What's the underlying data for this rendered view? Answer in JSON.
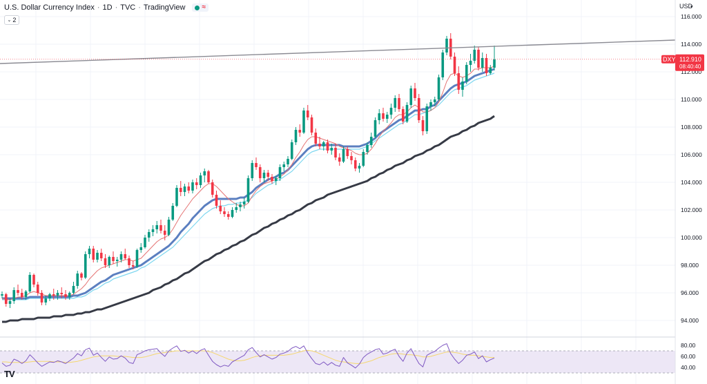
{
  "legend": {
    "title": "U.S. Dollar Currency Index",
    "interval": "1D",
    "source": "TVC",
    "platform": "TradingView",
    "status_icon": "market-open-dot",
    "status_color": "#089981",
    "indicator_icon": "wave-icon"
  },
  "collapse_button": {
    "count": "2",
    "icon": "chevron-down-icon"
  },
  "logo": {
    "text": "TV"
  },
  "price_axis": {
    "currency": "USD",
    "currency_icon": "chevron-down-icon",
    "ticks": [
      "116.000",
      "114.000",
      "112.000",
      "110.000",
      "108.000",
      "106.000",
      "104.000",
      "102.000",
      "100.000",
      "98.000",
      "96.000",
      "94.000"
    ],
    "last_price": "112.910",
    "countdown": "08:40:40",
    "symbol": "DXY",
    "last_price_color": "#f23645"
  },
  "rsi_axis": {
    "ticks": [
      "80.00",
      "60.00",
      "40.00"
    ]
  },
  "colors": {
    "up_candle": "#089981",
    "down_candle": "#f23645",
    "ma_fast": "#e57373",
    "ma_mid": "#5b7fc0",
    "ma_cyan": "#7ed7f0",
    "ma_slow": "#363a45",
    "trendline": "#8a8a92",
    "rsi_line": "#7e57c2",
    "rsi_ma": "#f5d76e",
    "rsi_band": "#ede7f6"
  },
  "chart_data": {
    "type": "candlestick",
    "symbol": "DXY",
    "title": "U.S. Dollar Currency Index",
    "ylim": [
      93,
      117
    ],
    "candles": [
      [
        95.8,
        96.1,
        95.6,
        95.9
      ],
      [
        95.9,
        96.0,
        95.0,
        95.2
      ],
      [
        95.2,
        95.6,
        94.9,
        95.4
      ],
      [
        95.4,
        96.4,
        95.2,
        96.2
      ],
      [
        96.2,
        96.6,
        95.8,
        96.0
      ],
      [
        96.0,
        96.3,
        95.5,
        95.7
      ],
      [
        95.7,
        96.2,
        95.5,
        96.1
      ],
      [
        96.1,
        97.5,
        96.0,
        97.3
      ],
      [
        97.3,
        97.4,
        96.4,
        96.6
      ],
      [
        96.6,
        96.8,
        95.8,
        96.0
      ],
      [
        96.0,
        96.2,
        95.1,
        95.3
      ],
      [
        95.3,
        95.8,
        95.1,
        95.6
      ],
      [
        95.6,
        96.0,
        95.4,
        95.9
      ],
      [
        95.9,
        96.3,
        95.5,
        95.8
      ],
      [
        95.8,
        96.2,
        95.5,
        96.0
      ],
      [
        96.0,
        96.4,
        95.6,
        95.9
      ],
      [
        95.9,
        96.2,
        95.5,
        95.7
      ],
      [
        95.7,
        96.1,
        95.5,
        96.0
      ],
      [
        96.0,
        96.8,
        95.9,
        96.5
      ],
      [
        96.5,
        97.6,
        96.3,
        97.4
      ],
      [
        97.4,
        97.5,
        96.9,
        97.1
      ],
      [
        97.1,
        99.0,
        97.0,
        98.8
      ],
      [
        98.8,
        99.4,
        98.5,
        99.2
      ],
      [
        99.2,
        99.4,
        98.2,
        98.4
      ],
      [
        98.4,
        99.1,
        98.2,
        98.9
      ],
      [
        98.9,
        99.2,
        98.3,
        98.5
      ],
      [
        98.5,
        98.8,
        97.8,
        98.0
      ],
      [
        98.0,
        98.7,
        97.8,
        98.6
      ],
      [
        98.6,
        99.0,
        98.1,
        98.3
      ],
      [
        98.3,
        98.6,
        97.9,
        98.4
      ],
      [
        98.4,
        99.0,
        98.2,
        98.8
      ],
      [
        98.8,
        99.2,
        98.4,
        98.5
      ],
      [
        98.5,
        98.7,
        97.8,
        98.0
      ],
      [
        98.0,
        98.3,
        97.7,
        97.9
      ],
      [
        97.9,
        99.2,
        97.8,
        99.1
      ],
      [
        99.1,
        99.6,
        98.9,
        99.3
      ],
      [
        99.3,
        100.2,
        99.2,
        100.0
      ],
      [
        100.0,
        100.6,
        99.7,
        100.4
      ],
      [
        100.4,
        100.9,
        100.1,
        100.6
      ],
      [
        100.6,
        101.2,
        100.3,
        100.9
      ],
      [
        100.9,
        101.3,
        100.3,
        100.5
      ],
      [
        100.5,
        100.9,
        99.8,
        100.2
      ],
      [
        100.2,
        101.5,
        100.1,
        101.3
      ],
      [
        101.3,
        102.5,
        101.2,
        102.3
      ],
      [
        102.3,
        103.8,
        102.2,
        103.6
      ],
      [
        103.6,
        104.1,
        103.0,
        103.3
      ],
      [
        103.3,
        103.9,
        103.0,
        103.7
      ],
      [
        103.7,
        104.0,
        103.2,
        103.4
      ],
      [
        103.4,
        104.2,
        103.2,
        104.0
      ],
      [
        104.0,
        104.3,
        103.5,
        103.8
      ],
      [
        103.8,
        104.7,
        103.6,
        104.5
      ],
      [
        104.5,
        105.0,
        104.0,
        104.8
      ],
      [
        104.8,
        104.9,
        103.9,
        104.0
      ],
      [
        104.0,
        104.2,
        102.9,
        103.1
      ],
      [
        103.1,
        103.4,
        102.1,
        102.3
      ],
      [
        102.3,
        102.7,
        101.7,
        101.9
      ],
      [
        101.9,
        102.2,
        101.5,
        101.7
      ],
      [
        101.7,
        101.9,
        101.3,
        101.5
      ],
      [
        101.5,
        102.2,
        101.4,
        102.0
      ],
      [
        102.0,
        102.5,
        101.8,
        102.2
      ],
      [
        102.2,
        102.6,
        101.9,
        102.4
      ],
      [
        102.4,
        102.9,
        102.1,
        102.6
      ],
      [
        102.6,
        104.5,
        102.5,
        104.3
      ],
      [
        104.3,
        105.6,
        104.1,
        105.4
      ],
      [
        105.4,
        105.8,
        104.9,
        105.1
      ],
      [
        105.1,
        105.3,
        104.0,
        104.3
      ],
      [
        104.3,
        104.9,
        104.0,
        104.7
      ],
      [
        104.7,
        104.9,
        104.1,
        104.4
      ],
      [
        104.4,
        104.6,
        103.9,
        104.1
      ],
      [
        104.1,
        104.5,
        103.8,
        104.3
      ],
      [
        104.3,
        105.3,
        104.1,
        105.1
      ],
      [
        105.1,
        105.5,
        104.8,
        105.3
      ],
      [
        105.3,
        105.9,
        105.1,
        105.7
      ],
      [
        105.7,
        107.1,
        105.6,
        106.9
      ],
      [
        106.9,
        108.0,
        106.7,
        107.8
      ],
      [
        107.8,
        108.2,
        107.3,
        107.6
      ],
      [
        107.6,
        109.4,
        107.5,
        109.2
      ],
      [
        109.2,
        109.6,
        108.5,
        108.7
      ],
      [
        108.7,
        108.9,
        107.4,
        107.6
      ],
      [
        107.6,
        107.9,
        106.6,
        106.8
      ],
      [
        106.8,
        107.3,
        106.4,
        106.6
      ],
      [
        106.6,
        107.0,
        106.3,
        106.9
      ],
      [
        106.9,
        107.1,
        106.1,
        106.3
      ],
      [
        106.3,
        106.8,
        106.0,
        106.5
      ],
      [
        106.5,
        106.8,
        105.6,
        105.8
      ],
      [
        105.8,
        106.1,
        105.2,
        105.5
      ],
      [
        105.5,
        106.6,
        105.4,
        106.4
      ],
      [
        106.4,
        106.6,
        105.7,
        105.9
      ],
      [
        105.9,
        106.2,
        105.3,
        105.6
      ],
      [
        105.6,
        105.8,
        104.8,
        105.0
      ],
      [
        105.0,
        105.4,
        104.7,
        105.2
      ],
      [
        105.2,
        106.4,
        105.1,
        106.2
      ],
      [
        106.2,
        106.9,
        106.0,
        106.7
      ],
      [
        106.7,
        107.6,
        106.5,
        107.3
      ],
      [
        107.3,
        108.7,
        107.2,
        108.5
      ],
      [
        108.5,
        109.3,
        108.2,
        109.0
      ],
      [
        109.0,
        109.4,
        108.4,
        108.6
      ],
      [
        108.6,
        109.1,
        108.3,
        108.9
      ],
      [
        108.9,
        109.7,
        108.6,
        109.4
      ],
      [
        109.4,
        110.3,
        109.1,
        110.1
      ],
      [
        110.1,
        110.4,
        109.1,
        109.3
      ],
      [
        109.3,
        109.5,
        108.2,
        108.4
      ],
      [
        108.4,
        109.8,
        108.3,
        109.6
      ],
      [
        109.6,
        111.0,
        109.4,
        110.8
      ],
      [
        110.8,
        111.2,
        109.9,
        110.1
      ],
      [
        110.1,
        110.4,
        108.3,
        108.5
      ],
      [
        108.5,
        108.8,
        107.4,
        107.7
      ],
      [
        107.7,
        109.7,
        107.5,
        109.5
      ],
      [
        109.5,
        110.0,
        109.2,
        109.8
      ],
      [
        109.8,
        110.2,
        109.5,
        110.0
      ],
      [
        110.0,
        111.8,
        109.9,
        111.6
      ],
      [
        111.6,
        113.6,
        111.4,
        113.4
      ],
      [
        113.4,
        114.6,
        113.2,
        114.4
      ],
      [
        114.4,
        114.8,
        112.9,
        113.1
      ],
      [
        113.1,
        113.4,
        111.7,
        111.9
      ],
      [
        111.9,
        112.4,
        110.4,
        110.7
      ],
      [
        110.7,
        111.6,
        110.2,
        111.3
      ],
      [
        111.3,
        112.7,
        111.1,
        112.5
      ],
      [
        112.5,
        113.3,
        112.0,
        112.8
      ],
      [
        112.8,
        113.9,
        112.6,
        113.6
      ],
      [
        113.6,
        113.8,
        112.1,
        112.3
      ],
      [
        112.3,
        113.4,
        112.0,
        113.0
      ],
      [
        113.0,
        113.3,
        111.7,
        111.9
      ],
      [
        111.9,
        112.5,
        111.8,
        112.3
      ],
      [
        112.3,
        113.9,
        112.1,
        112.9
      ]
    ],
    "ma_fast": [
      95.6,
      95.5,
      95.5,
      95.6,
      95.7,
      95.7,
      95.8,
      96.0,
      96.1,
      96.0,
      95.9,
      95.8,
      95.8,
      95.8,
      95.8,
      95.8,
      95.8,
      95.8,
      95.9,
      96.1,
      96.3,
      96.6,
      97.0,
      97.3,
      97.6,
      97.8,
      97.9,
      98.0,
      98.1,
      98.2,
      98.3,
      98.4,
      98.4,
      98.3,
      98.4,
      98.5,
      98.8,
      99.1,
      99.4,
      99.7,
      99.9,
      100.0,
      100.2,
      100.6,
      101.1,
      101.6,
      102.0,
      102.4,
      102.8,
      103.1,
      103.4,
      103.7,
      103.9,
      103.9,
      103.7,
      103.4,
      103.1,
      102.8,
      102.6,
      102.4,
      102.3,
      102.3,
      102.5,
      103.0,
      103.4,
      103.7,
      103.9,
      104.0,
      104.1,
      104.2,
      104.4,
      104.6,
      104.9,
      105.3,
      105.8,
      106.2,
      106.7,
      107.1,
      107.3,
      107.3,
      107.2,
      107.1,
      107.0,
      106.9,
      106.8,
      106.6,
      106.5,
      106.4,
      106.3,
      106.1,
      106.0,
      106.0,
      106.1,
      106.4,
      106.8,
      107.3,
      107.7,
      108.0,
      108.3,
      108.7,
      108.9,
      108.9,
      109.1,
      109.4,
      109.6,
      109.4,
      109.1,
      109.1,
      109.2,
      109.4,
      109.8,
      110.5,
      111.3,
      111.8,
      111.9,
      111.7,
      111.6,
      111.7,
      111.9,
      112.2,
      112.2,
      112.3,
      112.3,
      112.3,
      112.4
    ],
    "ma_mid": [
      95.6,
      95.6,
      95.6,
      95.6,
      95.6,
      95.6,
      95.6,
      95.7,
      95.7,
      95.7,
      95.7,
      95.7,
      95.7,
      95.7,
      95.7,
      95.7,
      95.7,
      95.7,
      95.8,
      95.8,
      95.9,
      96.0,
      96.2,
      96.4,
      96.6,
      96.8,
      96.9,
      97.1,
      97.3,
      97.4,
      97.5,
      97.6,
      97.7,
      97.8,
      97.9,
      98.0,
      98.2,
      98.4,
      98.6,
      98.8,
      99.0,
      99.2,
      99.4,
      99.7,
      100.0,
      100.4,
      100.7,
      101.0,
      101.4,
      101.7,
      102.0,
      102.3,
      102.5,
      102.7,
      102.8,
      102.8,
      102.8,
      102.8,
      102.8,
      102.8,
      102.9,
      102.9,
      103.1,
      103.3,
      103.6,
      103.8,
      104.0,
      104.2,
      104.3,
      104.4,
      104.6,
      104.7,
      104.9,
      105.2,
      105.5,
      105.8,
      106.1,
      106.4,
      106.6,
      106.7,
      106.7,
      106.7,
      106.7,
      106.7,
      106.7,
      106.7,
      106.6,
      106.6,
      106.6,
      106.6,
      106.6,
      106.7,
      106.8,
      107.0,
      107.2,
      107.5,
      107.7,
      107.9,
      108.1,
      108.3,
      108.5,
      108.6,
      108.8,
      109.0,
      109.2,
      109.2,
      109.3,
      109.3,
      109.5,
      109.6,
      109.9,
      110.2,
      110.5,
      110.8,
      111.0,
      111.1,
      111.2,
      111.3,
      111.5,
      111.7,
      111.8,
      111.9,
      112.0,
      112.1,
      112.2
    ],
    "ma_cyan": [
      95.5,
      95.5,
      95.5,
      95.5,
      95.5,
      95.5,
      95.5,
      95.6,
      95.6,
      95.6,
      95.6,
      95.6,
      95.6,
      95.6,
      95.6,
      95.6,
      95.6,
      95.6,
      95.6,
      95.7,
      95.7,
      95.8,
      96.0,
      96.2,
      96.3,
      96.5,
      96.7,
      96.8,
      97.0,
      97.1,
      97.2,
      97.3,
      97.4,
      97.5,
      97.6,
      97.8,
      97.9,
      98.1,
      98.3,
      98.5,
      98.7,
      98.9,
      99.1,
      99.3,
      99.6,
      99.9,
      100.2,
      100.5,
      100.8,
      101.1,
      101.4,
      101.7,
      101.9,
      102.1,
      102.2,
      102.3,
      102.3,
      102.4,
      102.4,
      102.5,
      102.5,
      102.6,
      102.7,
      102.9,
      103.2,
      103.4,
      103.6,
      103.8,
      103.9,
      104.1,
      104.2,
      104.4,
      104.6,
      104.8,
      105.1,
      105.4,
      105.7,
      106.0,
      106.2,
      106.3,
      106.4,
      106.4,
      106.4,
      106.4,
      106.4,
      106.4,
      106.4,
      106.4,
      106.4,
      106.4,
      106.4,
      106.5,
      106.6,
      106.8,
      107.0,
      107.2,
      107.4,
      107.6,
      107.8,
      108.0,
      108.2,
      108.3,
      108.5,
      108.7,
      108.9,
      108.9,
      109.0,
      109.1,
      109.2,
      109.4,
      109.6,
      109.9,
      110.2,
      110.5,
      110.7,
      110.8,
      110.9,
      111.0,
      111.2,
      111.4,
      111.5,
      111.6,
      111.7,
      111.8,
      111.9
    ],
    "ma_slow": [
      93.9,
      93.9,
      94.0,
      94.0,
      94.0,
      94.1,
      94.1,
      94.1,
      94.1,
      94.2,
      94.2,
      94.2,
      94.2,
      94.3,
      94.3,
      94.3,
      94.4,
      94.4,
      94.4,
      94.5,
      94.5,
      94.6,
      94.6,
      94.7,
      94.8,
      94.8,
      94.9,
      95.0,
      95.1,
      95.2,
      95.3,
      95.4,
      95.5,
      95.6,
      95.7,
      95.8,
      95.9,
      96.0,
      96.2,
      96.3,
      96.4,
      96.6,
      96.7,
      96.9,
      97.0,
      97.2,
      97.4,
      97.5,
      97.7,
      97.9,
      98.1,
      98.3,
      98.4,
      98.6,
      98.8,
      98.9,
      99.1,
      99.2,
      99.4,
      99.5,
      99.7,
      99.8,
      100.0,
      100.2,
      100.3,
      100.5,
      100.7,
      100.8,
      101.0,
      101.1,
      101.3,
      101.4,
      101.6,
      101.7,
      101.9,
      102.0,
      102.2,
      102.4,
      102.5,
      102.7,
      102.8,
      102.9,
      103.1,
      103.2,
      103.3,
      103.4,
      103.5,
      103.6,
      103.7,
      103.8,
      103.9,
      104.0,
      104.1,
      104.3,
      104.4,
      104.6,
      104.7,
      104.9,
      105.0,
      105.2,
      105.3,
      105.4,
      105.6,
      105.7,
      105.9,
      106.0,
      106.1,
      106.3,
      106.4,
      106.6,
      106.7,
      106.9,
      107.1,
      107.3,
      107.4,
      107.5,
      107.7,
      107.8,
      108.0,
      108.1,
      108.3,
      108.4,
      108.5,
      108.6,
      108.8
    ],
    "trendline": [
      [
        0,
        112.6
      ],
      [
        124,
        114.3
      ]
    ],
    "rsi": [
      48,
      42,
      44,
      55,
      52,
      47,
      52,
      63,
      56,
      48,
      42,
      46,
      50,
      49,
      52,
      50,
      47,
      52,
      57,
      65,
      61,
      72,
      75,
      62,
      66,
      58,
      51,
      59,
      55,
      56,
      61,
      57,
      49,
      47,
      63,
      66,
      70,
      72,
      73,
      74,
      66,
      60,
      70,
      75,
      79,
      69,
      71,
      66,
      70,
      65,
      71,
      74,
      62,
      51,
      45,
      41,
      44,
      42,
      50,
      54,
      58,
      62,
      72,
      76,
      67,
      59,
      63,
      59,
      55,
      58,
      64,
      66,
      69,
      75,
      78,
      74,
      79,
      66,
      56,
      47,
      45,
      50,
      44,
      49,
      44,
      42,
      58,
      48,
      44,
      39,
      46,
      58,
      64,
      68,
      72,
      74,
      64,
      66,
      70,
      73,
      60,
      51,
      66,
      74,
      60,
      47,
      41,
      62,
      66,
      69,
      75,
      80,
      83,
      65,
      55,
      47,
      53,
      62,
      64,
      68,
      56,
      61,
      50,
      54,
      57
    ],
    "rsi_ma": [
      50,
      50,
      49,
      49,
      49,
      49,
      49,
      50,
      51,
      51,
      51,
      51,
      51,
      50,
      50,
      50,
      49,
      49,
      50,
      51,
      53,
      55,
      57,
      59,
      60,
      61,
      61,
      61,
      61,
      60,
      60,
      60,
      59,
      58,
      58,
      58,
      59,
      61,
      63,
      65,
      66,
      67,
      68,
      69,
      70,
      70,
      70,
      70,
      70,
      70,
      70,
      70,
      69,
      67,
      64,
      61,
      58,
      55,
      53,
      52,
      52,
      53,
      55,
      58,
      60,
      61,
      62,
      62,
      62,
      62,
      62,
      62,
      63,
      64,
      66,
      68,
      70,
      71,
      70,
      68,
      65,
      62,
      59,
      56,
      53,
      51,
      50,
      49,
      48,
      47,
      47,
      48,
      50,
      52,
      55,
      58,
      60,
      62,
      64,
      65,
      65,
      64,
      63,
      63,
      62,
      61,
      59,
      59,
      60,
      62,
      64,
      66,
      68,
      68,
      67,
      66,
      64,
      63,
      62,
      62,
      61,
      60,
      59,
      58,
      58
    ],
    "rsi_levels": {
      "upper": 70,
      "lower": 30,
      "range": [
        20,
        90
      ]
    }
  }
}
